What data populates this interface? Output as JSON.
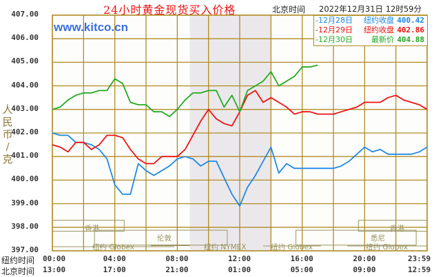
{
  "header": {
    "title": "24小时黄金现货买入价格",
    "beijing_label": "北京时间",
    "datetime": "2022年12月31日 12时59分",
    "watermark": "www.kitco.cn"
  },
  "legend": [
    {
      "date": "-12月28日",
      "label": "纽约收盘",
      "value": "400.42",
      "color": "#1e88e5"
    },
    {
      "date": "-12月29日",
      "label": "纽约收盘",
      "value": "402.86",
      "color": "#ee1111"
    },
    {
      "date": "-12月30日",
      "label": "最新价",
      "value": "404.88",
      "color": "#22aa22"
    }
  ],
  "axes": {
    "y_title": "人民币/克",
    "y_ticks": [
      "407.00",
      "406.00",
      "405.00",
      "404.00",
      "403.00",
      "402.00",
      "401.00",
      "400.00",
      "399.00",
      "398.00",
      "397.00"
    ],
    "ny_label": "纽约时间",
    "bj_label": "北京时间",
    "ny_times": [
      "00:00",
      "04:00",
      "08:00",
      "12:00",
      "16:00",
      "20:00",
      "23:59"
    ],
    "bj_times": [
      "13:00",
      "17:00",
      "21:00",
      "01:00",
      "05:00",
      "09:00",
      "12:59"
    ]
  },
  "markets": [
    {
      "name": "香港",
      "row": 0
    },
    {
      "name": "伦敦",
      "row": 1
    },
    {
      "name": "纽约 Globex",
      "row": 2
    },
    {
      "name": "纽约 NYMEX",
      "row": 2
    },
    {
      "name": "纽约 Globex",
      "row": 2
    },
    {
      "name": "香港",
      "row": 0
    },
    {
      "name": "悉尼",
      "row": 1
    },
    {
      "name": "纽约 Globex",
      "row": 2
    }
  ],
  "colors": {
    "grid": "#b08a22",
    "shade": "#ebe8ec",
    "blue": "#1e88e5",
    "red": "#ee1111",
    "green": "#22aa22",
    "market_text": "#9a9360"
  },
  "chart_data": {
    "type": "line",
    "title": "24小时黄金现货买入价格",
    "xlabel": "纽约时间 / 北京时间",
    "ylabel": "人民币/克",
    "ylim": [
      397,
      407
    ],
    "xlim_hours": [
      0,
      24
    ],
    "grid": true,
    "legend_position": "top-right",
    "shaded_region_hours": [
      8.8,
      14.0
    ],
    "x_tick_labels_ny": [
      "00:00",
      "04:00",
      "08:00",
      "12:00",
      "16:00",
      "20:00",
      "23:59"
    ],
    "x_tick_labels_bj": [
      "13:00",
      "17:00",
      "21:00",
      "01:00",
      "05:00",
      "09:00",
      "12:59"
    ],
    "series": [
      {
        "name": "12月28日 纽约收盘 400.42",
        "color": "#1e88e5",
        "x": [
          0,
          0.5,
          1,
          1.5,
          2,
          2.5,
          3,
          3.5,
          4,
          4.5,
          5,
          5.5,
          6,
          6.5,
          7,
          7.5,
          8,
          8.5,
          9,
          9.5,
          10,
          10.5,
          11,
          11.5,
          12,
          12.5,
          13,
          13.5,
          14,
          14.5,
          15,
          15.5,
          16,
          16.5,
          17,
          17.5,
          18,
          18.5,
          19,
          19.5,
          20,
          20.5,
          21,
          21.5,
          22,
          22.5,
          23,
          23.5,
          24
        ],
        "y": [
          402.0,
          401.9,
          401.9,
          401.6,
          401.6,
          401.5,
          401.3,
          400.9,
          399.8,
          399.4,
          399.4,
          400.7,
          400.4,
          400.2,
          400.4,
          400.6,
          400.9,
          401.0,
          400.9,
          400.6,
          400.8,
          400.8,
          400.1,
          399.4,
          398.9,
          399.7,
          400.2,
          400.8,
          401.4,
          400.3,
          400.7,
          400.5,
          400.5,
          400.5,
          400.5,
          400.5,
          400.5,
          400.6,
          400.8,
          401.1,
          401.4,
          401.2,
          401.3,
          401.1,
          401.1,
          401.1,
          401.1,
          401.2,
          401.4
        ]
      },
      {
        "name": "12月29日 纽约收盘 402.86",
        "color": "#ee1111",
        "x": [
          0,
          0.5,
          1,
          1.5,
          2,
          2.5,
          3,
          3.5,
          4,
          4.5,
          5,
          5.5,
          6,
          6.5,
          7,
          7.5,
          8,
          8.5,
          9,
          9.5,
          10,
          10.5,
          11,
          11.5,
          12,
          12.5,
          13,
          13.5,
          14,
          14.5,
          15,
          15.5,
          16,
          16.5,
          17,
          17.5,
          18,
          18.5,
          19,
          19.5,
          20,
          20.5,
          21,
          21.5,
          22,
          22.5,
          23,
          23.5,
          24
        ],
        "y": [
          401.5,
          401.4,
          401.2,
          401.6,
          401.6,
          401.3,
          401.5,
          401.9,
          401.9,
          401.8,
          401.3,
          400.9,
          400.7,
          400.7,
          401.0,
          401.0,
          401.0,
          401.3,
          401.9,
          402.5,
          403.0,
          402.6,
          402.4,
          402.3,
          402.9,
          403.6,
          403.8,
          403.3,
          403.5,
          403.3,
          403.1,
          402.8,
          402.9,
          402.9,
          402.8,
          402.8,
          402.8,
          402.9,
          403.0,
          403.1,
          403.3,
          403.3,
          403.3,
          403.5,
          403.6,
          403.4,
          403.3,
          403.2,
          403.0
        ]
      },
      {
        "name": "12月30日 最新价 404.88",
        "color": "#22aa22",
        "x": [
          0,
          0.5,
          1,
          1.5,
          2,
          2.5,
          3,
          3.5,
          4,
          4.5,
          5,
          5.5,
          6,
          6.5,
          7,
          7.5,
          8,
          8.5,
          9,
          9.5,
          10,
          10.5,
          11,
          11.5,
          12,
          12.5,
          13,
          13.5,
          14,
          14.5,
          15,
          15.5,
          16,
          16.5,
          17
        ],
        "y": [
          403.0,
          403.1,
          403.4,
          403.6,
          403.7,
          403.7,
          403.8,
          403.8,
          404.3,
          404.1,
          403.3,
          403.2,
          403.2,
          402.9,
          402.9,
          402.7,
          403.0,
          403.4,
          403.7,
          403.7,
          403.8,
          403.8,
          403.1,
          403.6,
          402.9,
          403.8,
          404.0,
          404.2,
          404.6,
          404.0,
          404.2,
          404.4,
          404.8,
          404.8,
          404.88
        ]
      }
    ]
  }
}
